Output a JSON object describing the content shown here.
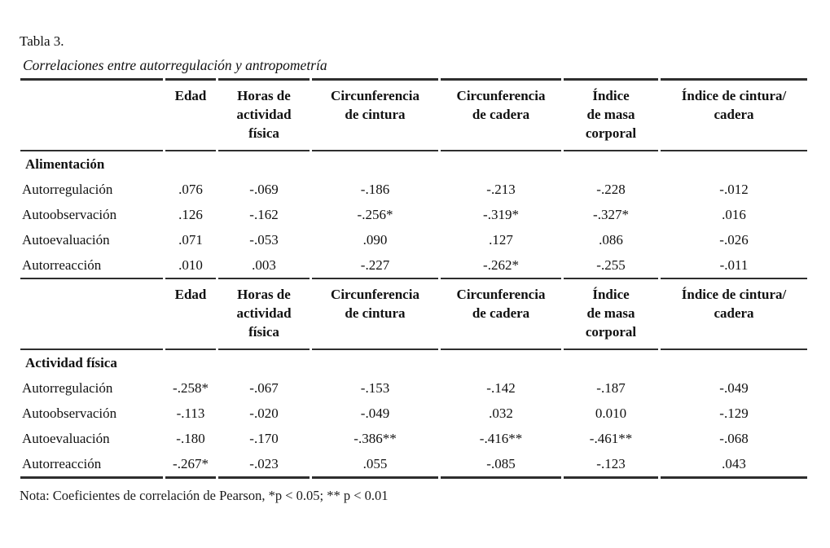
{
  "document": {
    "table_label": "Tabla 3.",
    "table_caption": "Correlaciones entre autorregulación y antropometría",
    "note": "Nota: Coeficientes de correlación de Pearson, *p < 0.05; ** p < 0.01"
  },
  "table": {
    "column_headers": [
      "",
      "Edad",
      "Horas de\nactividad\nfísica",
      "Circunferencia\nde cintura",
      "Circunferencia\nde cadera",
      "Índice\nde masa\ncorporal",
      "Índice de cintura/\ncadera"
    ],
    "sections": [
      {
        "label": "Alimentación",
        "rows": [
          {
            "label": "Autorregulación",
            "values": [
              ".076",
              "-.069",
              "-.186",
              "-.213",
              "-.228",
              "-.012"
            ]
          },
          {
            "label": "Autoobservación",
            "values": [
              ".126",
              "-.162",
              "-.256*",
              "-.319*",
              "-.327*",
              ".016"
            ]
          },
          {
            "label": "Autoevaluación",
            "values": [
              ".071",
              "-.053",
              ".090",
              ".127",
              ".086",
              "-.026"
            ]
          },
          {
            "label": "Autorreacción",
            "values": [
              ".010",
              ".003",
              "-.227",
              "-.262*",
              "-.255",
              "-.011"
            ]
          }
        ]
      },
      {
        "label": "Actividad física",
        "rows": [
          {
            "label": "Autorregulación",
            "values": [
              "-.258*",
              "-.067",
              "-.153",
              "-.142",
              "-.187",
              "-.049"
            ]
          },
          {
            "label": "Autoobservación",
            "values": [
              "-.113",
              "-.020",
              "-.049",
              ".032",
              "0.010",
              "-.129"
            ]
          },
          {
            "label": "Autoevaluación",
            "values": [
              "-.180",
              "-.170",
              "-.386**",
              "-.416**",
              "-.461**",
              "-.068"
            ]
          },
          {
            "label": "Autorreacción",
            "values": [
              "-.267*",
              "-.023",
              ".055",
              "-.085",
              "-.123",
              ".043"
            ]
          }
        ]
      }
    ]
  }
}
